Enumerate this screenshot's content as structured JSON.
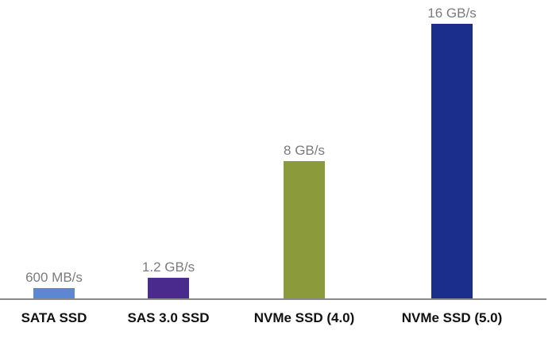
{
  "chart_data": {
    "type": "bar",
    "title": "",
    "xlabel": "",
    "ylabel": "",
    "categories": [
      "SATA SSD",
      "SAS 3.0 SSD",
      "NVMe SSD (4.0)",
      "NVMe SSD (5.0)"
    ],
    "values": [
      0.6,
      1.2,
      8,
      16
    ],
    "unit": "GB/s",
    "data_labels": [
      "600 MB/s",
      "1.2 GB/s",
      "8 GB/s",
      "16 GB/s"
    ],
    "colors": [
      "#5b87d3",
      "#4a2a8c",
      "#8b9b3b",
      "#1b2e8c"
    ],
    "ylim": [
      0,
      16
    ],
    "grid": false,
    "legend": "none"
  }
}
